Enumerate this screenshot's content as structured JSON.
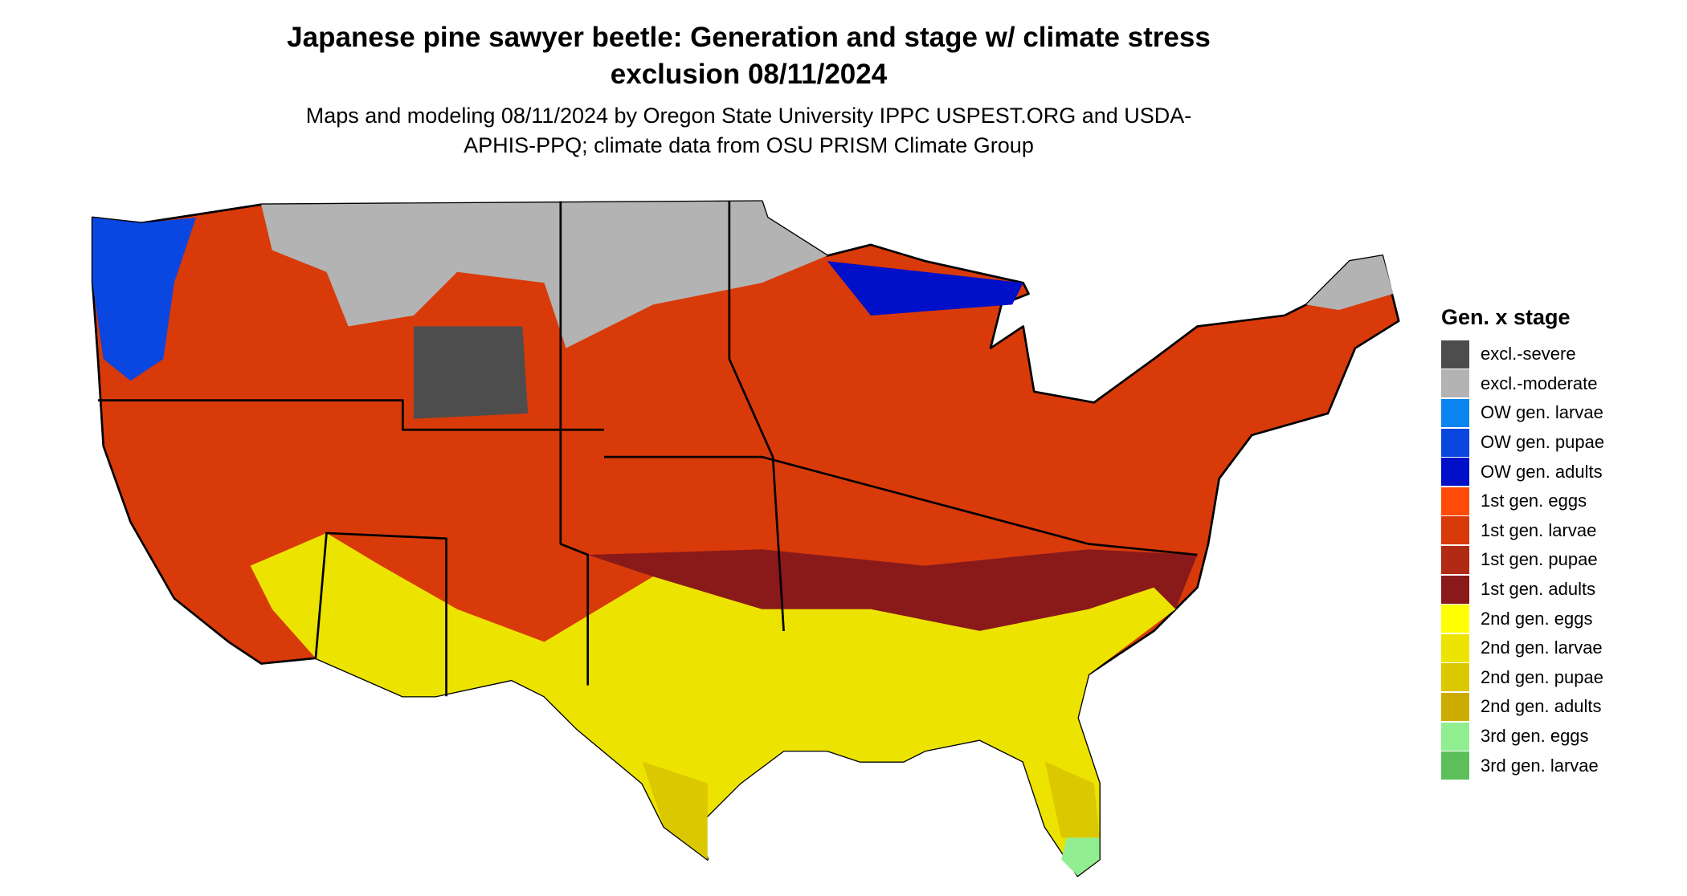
{
  "title": "Japanese pine sawyer beetle: Generation and stage w/ climate stress exclusion 08/11/2024",
  "subtitle": "Maps and modeling 08/11/2024 by Oregon State University IPPC USPEST.ORG and USDA-APHIS-PPQ; climate data from OSU PRISM Climate Group",
  "legend": {
    "title": "Gen. x stage",
    "items": [
      {
        "label": "excl.-severe",
        "color": "#4d4d4d"
      },
      {
        "label": "excl.-moderate",
        "color": "#b3b3b3"
      },
      {
        "label": "OW gen. larvae",
        "color": "#0a84f0"
      },
      {
        "label": "OW gen. pupae",
        "color": "#0a46e0"
      },
      {
        "label": "OW gen. adults",
        "color": "#0010c8"
      },
      {
        "label": "1st gen. eggs",
        "color": "#ff4a0a"
      },
      {
        "label": "1st gen. larvae",
        "color": "#d93a0a"
      },
      {
        "label": "1st gen. pupae",
        "color": "#b02a14"
      },
      {
        "label": "1st gen. adults",
        "color": "#8a1a1a"
      },
      {
        "label": "2nd gen. eggs",
        "color": "#ffff00"
      },
      {
        "label": "2nd gen. larvae",
        "color": "#ece400"
      },
      {
        "label": "2nd gen. pupae",
        "color": "#dcc800"
      },
      {
        "label": "2nd gen. adults",
        "color": "#ccac00"
      },
      {
        "label": "3rd gen. eggs",
        "color": "#90ee90"
      },
      {
        "label": "3rd gen. larvae",
        "color": "#5cbf5c"
      }
    ]
  }
}
